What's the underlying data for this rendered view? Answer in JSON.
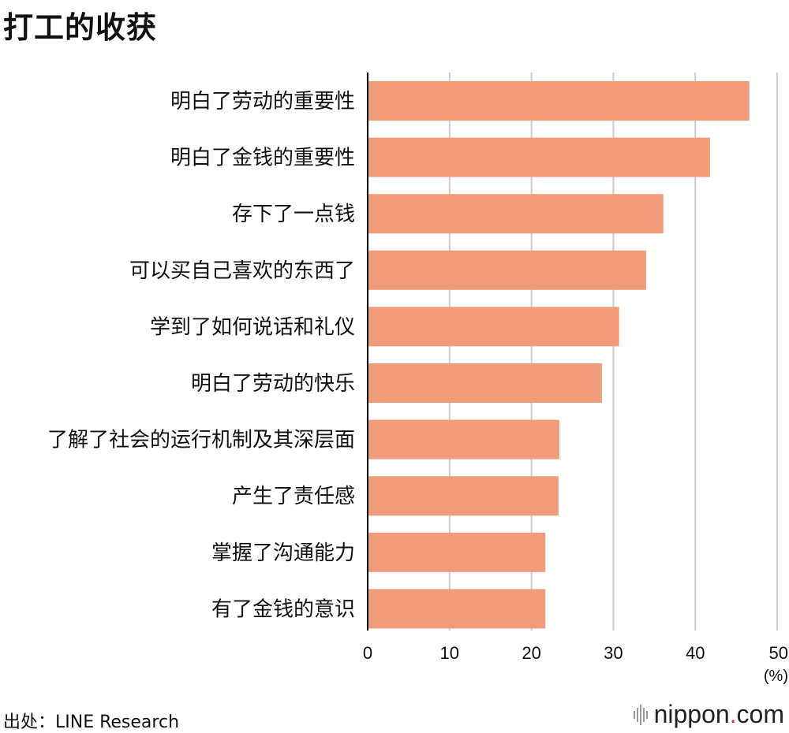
{
  "title": "打工的收获",
  "source": "出处：LINE Research",
  "brand": {
    "name": "nippon",
    "dot": ".",
    "tld": "com",
    "icon": "nippon-logo-bars-icon",
    "dot_color": "#e0332b"
  },
  "colors": {
    "bar": "#f09c7b",
    "grid": "#cccccc",
    "axis": "#000000"
  },
  "chart_data": {
    "type": "bar",
    "orientation": "horizontal",
    "title": "打工的收获",
    "categories": [
      "明白了劳动的重要性",
      "明白了金钱的重要性",
      "存下了一点钱",
      "可以买自己喜欢的东西了",
      "学到了如何说话和礼仪",
      "明白了劳动的快乐",
      "了解了社会的运行机制及其深层面",
      "产生了责任感",
      "掌握了沟通能力",
      "有了金钱的意识"
    ],
    "values": [
      46.6,
      41.8,
      36.1,
      34.0,
      30.7,
      28.6,
      23.4,
      23.3,
      21.7,
      21.7
    ],
    "xlim": [
      0,
      50
    ],
    "xticks": [
      "0",
      "10",
      "20",
      "30",
      "40",
      "50"
    ],
    "unit": "(%)",
    "grid": true
  }
}
